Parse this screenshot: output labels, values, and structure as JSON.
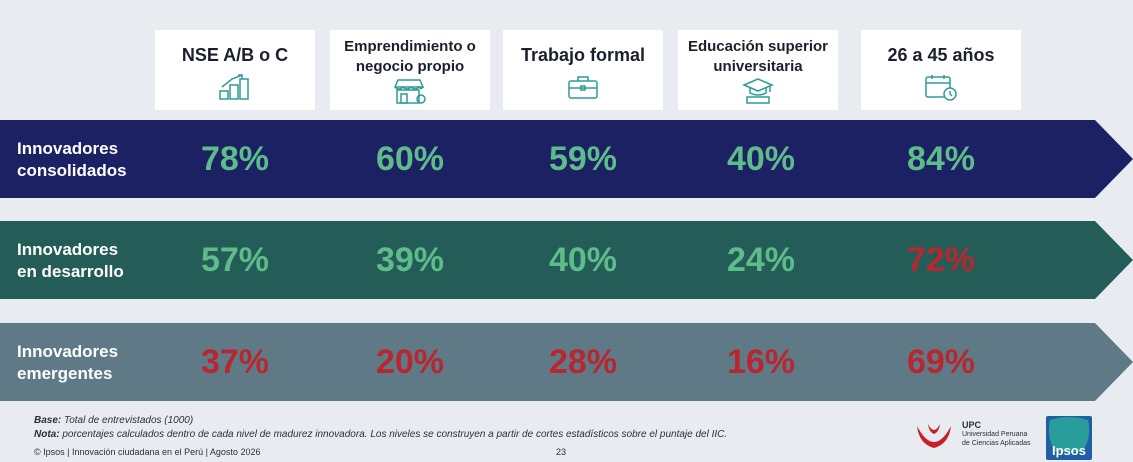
{
  "colors": {
    "band_consolidados": "#1b2163",
    "band_desarrollo": "#245d57",
    "band_emergentes": "#5f7a86",
    "value_green": "#5ebc8a",
    "value_red": "#b8272f",
    "icon_teal": "#2e9c97"
  },
  "chart_data": {
    "type": "table",
    "categories": [
      "NSE A/B o C",
      "Emprendimiento o\nnegocio propio",
      "Trabajo formal",
      "Educación superior\nuniversitaria",
      "26 a 45 años"
    ],
    "series": [
      {
        "name": "Innovadores\nconsolidados",
        "values": [
          "78%",
          "60%",
          "59%",
          "40%",
          "84%"
        ],
        "value_colors": [
          "green",
          "green",
          "green",
          "green",
          "green"
        ]
      },
      {
        "name": "Innovadores\nen desarrollo",
        "values": [
          "57%",
          "39%",
          "40%",
          "24%",
          "72%"
        ],
        "value_colors": [
          "green",
          "green",
          "green",
          "green",
          "red"
        ]
      },
      {
        "name": "Innovadores\nemergentes",
        "values": [
          "37%",
          "20%",
          "28%",
          "16%",
          "69%"
        ],
        "value_colors": [
          "red",
          "red",
          "red",
          "red",
          "red"
        ]
      }
    ]
  },
  "header_icons": [
    "growth-steps-icon",
    "storefront-icon",
    "briefcase-icon",
    "graduation-cap-icon",
    "calendar-clock-icon"
  ],
  "footer": {
    "base_label": "Base:",
    "base_text": " Total de entrevistados (1000)",
    "nota_label": "Nota:",
    "nota_text": " porcentajes calculados dentro de cada nivel de madurez innovadora. Los niveles se construyen a partir de cortes estadísticos sobre el puntaje del IIC.",
    "credit": "© Ipsos | Innovación ciudadana en el Perú | Agosto 2026",
    "page_number": "23"
  },
  "logos": {
    "upc_title": "UPC",
    "upc_sub1": "Universidad Peruana",
    "upc_sub2": "de Ciencias Aplicadas",
    "ipsos": "Ipsos"
  }
}
